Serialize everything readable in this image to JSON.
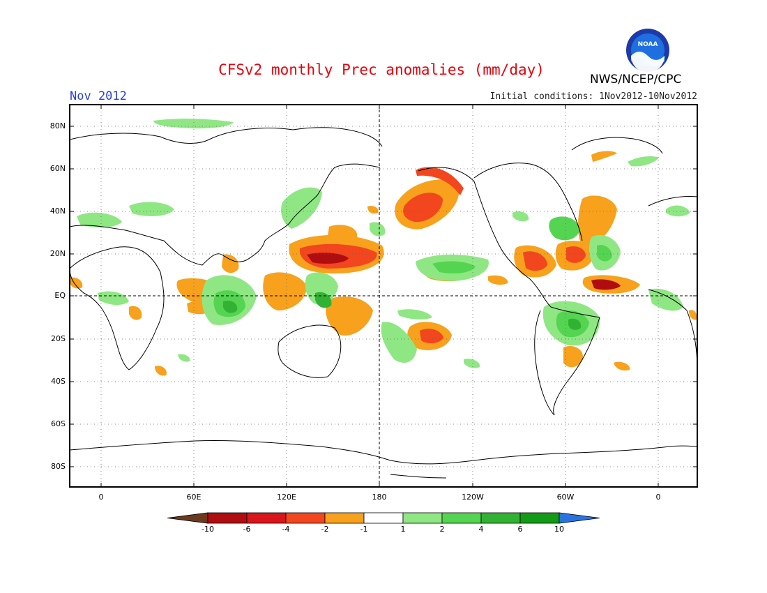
{
  "header": {
    "title": "CFSv2 monthly Prec anomalies (mm/day)",
    "month": "Nov 2012",
    "initial_conditions": "Initial conditions: 1Nov2012-10Nov2012",
    "agency": "NWS/NCEP/CPC",
    "logo_text": "NOAA"
  },
  "map": {
    "lat_labels": [
      "80N",
      "60N",
      "40N",
      "20N",
      "EQ",
      "20S",
      "40S",
      "60S",
      "80S"
    ],
    "lon_labels": [
      "0",
      "60E",
      "120E",
      "180",
      "120W",
      "60W",
      "0"
    ],
    "grid": "dotted",
    "reference_lines": [
      "EQ",
      "180"
    ]
  },
  "colorbar": {
    "labels": [
      "-10",
      "-6",
      "-4",
      "-2",
      "-1",
      "1",
      "2",
      "4",
      "6",
      "10"
    ],
    "colors": [
      "#6b3a1e",
      "#b00d10",
      "#d8151a",
      "#f2461f",
      "#f7a11c",
      "#ffffff",
      "#8fe783",
      "#55d452",
      "#32b232",
      "#139b18",
      "#2a72e0"
    ]
  },
  "anomaly_colors": {
    "dry_strong": "#b00d10",
    "dry": "#f2461f",
    "dry_weak": "#f7a11c",
    "wet_weak": "#8fe783",
    "wet": "#55d452",
    "wet_strong": "#139b18"
  }
}
